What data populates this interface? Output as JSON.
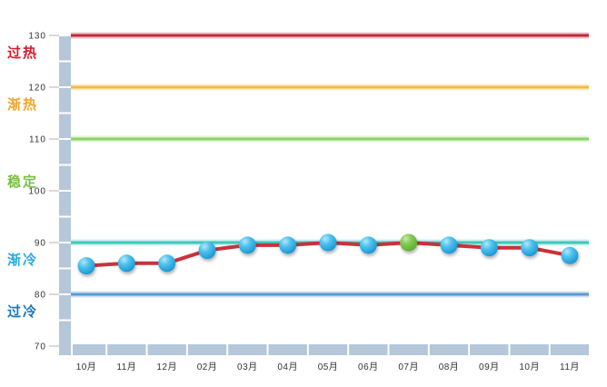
{
  "chart_data": {
    "type": "line",
    "title": "",
    "xlabel": "",
    "ylabel": "",
    "categories": [
      "10月",
      "11月",
      "12月",
      "02月",
      "03月",
      "04月",
      "05月",
      "06月",
      "07月",
      "08月",
      "09月",
      "10月",
      "11月"
    ],
    "values": [
      85.5,
      86,
      86,
      88.5,
      89.5,
      89.5,
      90,
      89.5,
      90,
      89.5,
      89,
      89,
      87.5
    ],
    "highlight_index": 8,
    "y_ticks": [
      130,
      120,
      110,
      100,
      90,
      80,
      70
    ],
    "ylim": [
      70,
      130
    ],
    "grid": false,
    "legend": false,
    "zones": [
      {
        "label": "过热",
        "line_value": 130,
        "label_value": 126.5,
        "color": "#c2293a",
        "label_color": "#cc1f2e"
      },
      {
        "label": "渐热",
        "line_value": 120,
        "label_value": 116.5,
        "color": "#f5bb3d",
        "label_color": "#f2a52a"
      },
      {
        "label": "稳定",
        "line_value": 110,
        "label_value": 101.5,
        "color": "#8ed36a",
        "label_color": "#7ac143"
      },
      {
        "label": "渐冷",
        "line_value": 90,
        "label_value": 86.5,
        "color": "#41c6bb",
        "label_color": "#29abe2"
      },
      {
        "label": "过冷",
        "line_value": 80,
        "label_value": 76.5,
        "color": "#5b9bd5",
        "label_color": "#1b75bc"
      }
    ],
    "line_color": "#c9323d",
    "marker_color": "#29abe2",
    "marker_highlight_color": "#6abf45",
    "axis_bar_color": "#b5c7d8",
    "tick_label_color": "#333333"
  }
}
